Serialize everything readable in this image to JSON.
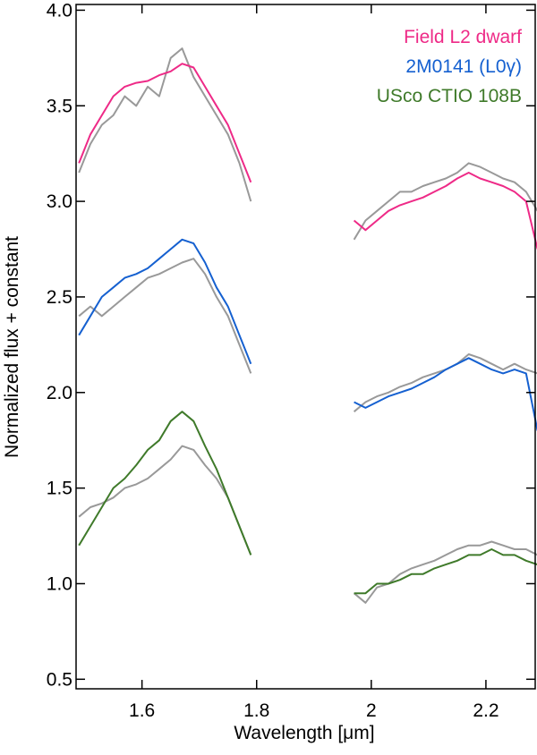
{
  "chart_data": {
    "type": "line",
    "xlabel": "Wavelength [μm]",
    "ylabel": "Normalized flux + constant",
    "xlim": [
      1.485,
      2.286
    ],
    "ylim": [
      0.45,
      4.03
    ],
    "xticks": [
      1.6,
      1.8,
      2.0,
      2.2
    ],
    "yticks": [
      0.5,
      {
        "value": 1,
        "label": "1.0"
      },
      1.5,
      {
        "value": 2,
        "label": "2.0"
      },
      2.5,
      {
        "value": 3,
        "label": "3.0"
      },
      3.5,
      {
        "value": 4,
        "label": "4.0"
      }
    ],
    "legend": "upper right",
    "x": [
      1.49,
      1.51,
      1.53,
      1.55,
      1.57,
      1.59,
      1.61,
      1.63,
      1.65,
      1.67,
      1.69,
      1.71,
      1.73,
      1.75,
      1.77,
      1.79,
      1.88,
      1.97,
      1.99,
      2.01,
      2.03,
      2.05,
      2.07,
      2.09,
      2.11,
      2.13,
      2.15,
      2.17,
      2.19,
      2.21,
      2.23,
      2.25,
      2.27,
      2.29
    ],
    "series": [
      {
        "color": "#999999",
        "values": [
          3.15,
          3.3,
          3.4,
          3.45,
          3.55,
          3.5,
          3.6,
          3.55,
          3.75,
          3.8,
          3.65,
          3.55,
          3.45,
          3.35,
          3.2,
          3.0,
          null,
          2.8,
          2.9,
          2.95,
          3.0,
          3.05,
          3.05,
          3.08,
          3.1,
          3.12,
          3.15,
          3.2,
          3.18,
          3.15,
          3.12,
          3.1,
          3.05,
          2.95
        ]
      },
      {
        "color": "#999999",
        "values": [
          2.4,
          2.45,
          2.4,
          2.45,
          2.5,
          2.55,
          2.6,
          2.62,
          2.65,
          2.68,
          2.7,
          2.62,
          2.5,
          2.4,
          2.25,
          2.1,
          null,
          1.9,
          1.95,
          1.98,
          2.0,
          2.03,
          2.05,
          2.08,
          2.1,
          2.12,
          2.15,
          2.2,
          2.18,
          2.15,
          2.12,
          2.15,
          2.12,
          2.1
        ]
      },
      {
        "color": "#999999",
        "values": [
          1.35,
          1.4,
          1.42,
          1.45,
          1.5,
          1.52,
          1.55,
          1.6,
          1.65,
          1.72,
          1.7,
          1.62,
          1.55,
          1.45,
          1.3,
          1.15,
          null,
          0.95,
          0.9,
          0.98,
          1.0,
          1.05,
          1.08,
          1.1,
          1.12,
          1.15,
          1.18,
          1.2,
          1.2,
          1.22,
          1.2,
          1.18,
          1.18,
          1.15
        ]
      },
      {
        "name": "Field L2 dwarf",
        "color": "#ee2a87",
        "values": [
          3.2,
          3.35,
          3.45,
          3.55,
          3.6,
          3.62,
          3.63,
          3.66,
          3.68,
          3.72,
          3.7,
          3.6,
          3.5,
          3.4,
          3.25,
          3.1,
          null,
          2.9,
          2.85,
          2.9,
          2.95,
          2.98,
          3.0,
          3.02,
          3.05,
          3.08,
          3.12,
          3.15,
          3.12,
          3.1,
          3.08,
          3.05,
          3.0,
          2.75
        ]
      },
      {
        "name": "2M0141 (L0γ)",
        "color": "#1560d0",
        "values": [
          2.3,
          2.4,
          2.5,
          2.55,
          2.6,
          2.62,
          2.65,
          2.7,
          2.75,
          2.8,
          2.78,
          2.68,
          2.55,
          2.45,
          2.3,
          2.15,
          null,
          1.95,
          1.92,
          1.95,
          1.98,
          2.0,
          2.02,
          2.05,
          2.08,
          2.12,
          2.15,
          2.18,
          2.15,
          2.12,
          2.1,
          2.12,
          2.1,
          1.8
        ]
      },
      {
        "name": "USco CTIO 108B",
        "color": "#3f7a2a",
        "values": [
          1.2,
          1.3,
          1.4,
          1.5,
          1.55,
          1.62,
          1.7,
          1.75,
          1.85,
          1.9,
          1.85,
          1.72,
          1.6,
          1.45,
          1.3,
          1.15,
          null,
          0.95,
          0.95,
          1.0,
          1.0,
          1.02,
          1.05,
          1.05,
          1.08,
          1.1,
          1.12,
          1.15,
          1.15,
          1.18,
          1.15,
          1.15,
          1.12,
          1.1
        ]
      }
    ]
  }
}
